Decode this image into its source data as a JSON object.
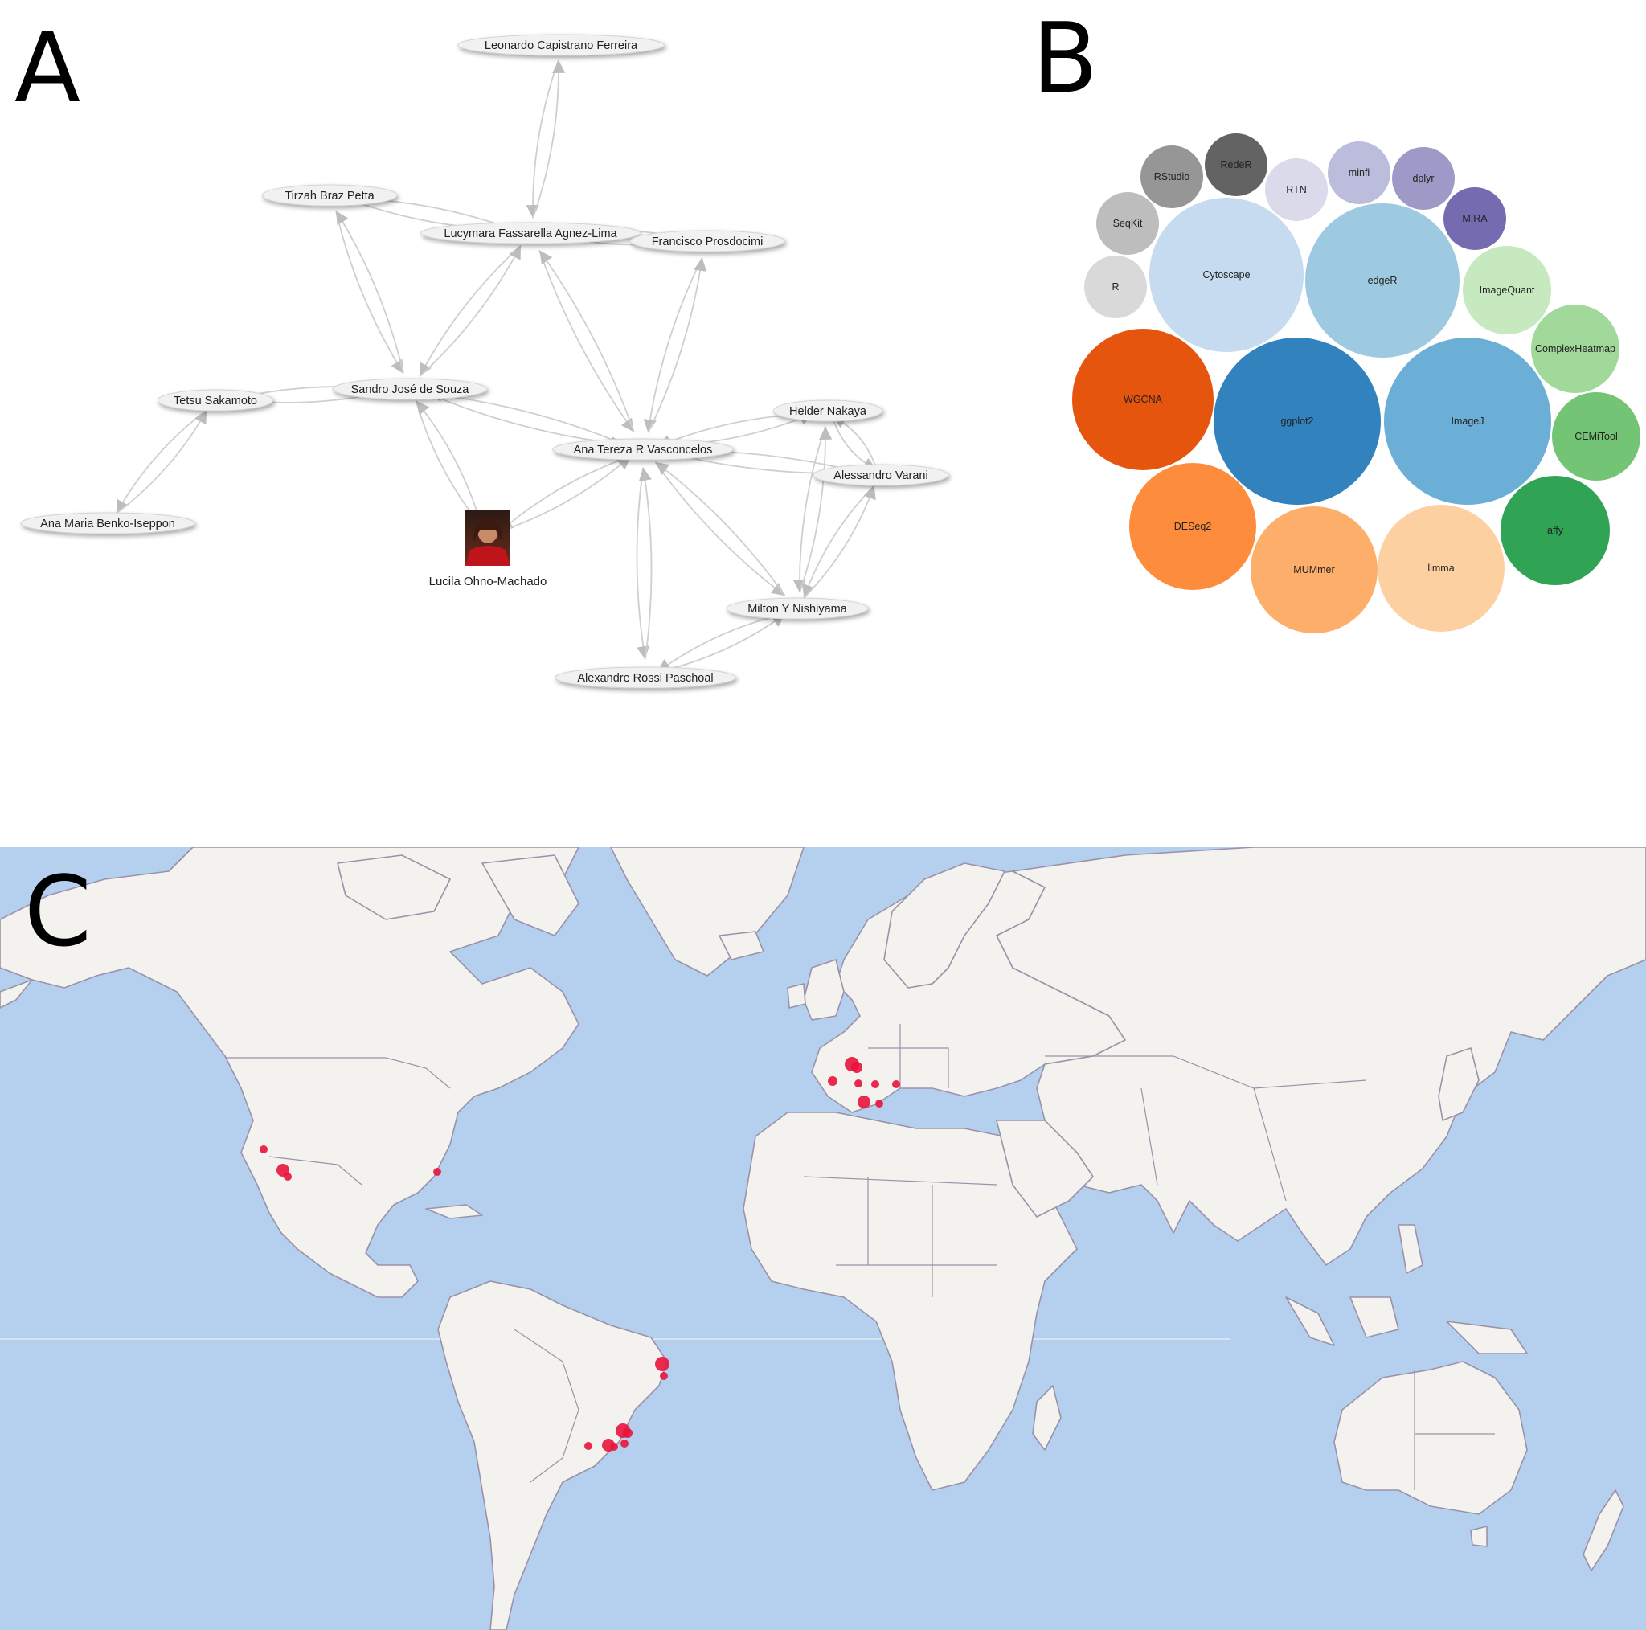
{
  "panels": {
    "a": {
      "letter": "A"
    },
    "b": {
      "letter": "B"
    },
    "c": {
      "letter": "C"
    }
  },
  "network": {
    "nodes": [
      {
        "id": "leonardo",
        "label": "Leonardo Capistrano Ferreira"
      },
      {
        "id": "tirzah",
        "label": "Tirzah Braz Petta"
      },
      {
        "id": "lucymara",
        "label": "Lucymara Fassarella Agnez-Lima"
      },
      {
        "id": "francisco",
        "label": "Francisco Prosdocimi"
      },
      {
        "id": "tetsu",
        "label": "Tetsu Sakamoto"
      },
      {
        "id": "sandro",
        "label": "Sandro José de Souza"
      },
      {
        "id": "helder",
        "label": "Helder Nakaya"
      },
      {
        "id": "ana_tereza",
        "label": "Ana Tereza R Vasconcelos"
      },
      {
        "id": "alessandro",
        "label": "Alessandro Varani"
      },
      {
        "id": "ana_maria",
        "label": "Ana Maria Benko-Iseppon"
      },
      {
        "id": "lucila",
        "label": "Lucila Ohno-Machado",
        "photo": true
      },
      {
        "id": "milton",
        "label": "Milton Y Nishiyama"
      },
      {
        "id": "alexandre",
        "label": "Alexandre Rossi Paschoal"
      }
    ],
    "edges": [
      [
        "leonardo",
        "lucymara"
      ],
      [
        "lucymara",
        "leonardo"
      ],
      [
        "tirzah",
        "lucymara"
      ],
      [
        "lucymara",
        "tirzah"
      ],
      [
        "tirzah",
        "sandro"
      ],
      [
        "sandro",
        "tirzah"
      ],
      [
        "lucymara",
        "francisco"
      ],
      [
        "francisco",
        "lucymara"
      ],
      [
        "lucymara",
        "sandro"
      ],
      [
        "sandro",
        "lucymara"
      ],
      [
        "lucymara",
        "ana_tereza"
      ],
      [
        "ana_tereza",
        "lucymara"
      ],
      [
        "francisco",
        "ana_tereza"
      ],
      [
        "ana_tereza",
        "francisco"
      ],
      [
        "tetsu",
        "sandro"
      ],
      [
        "sandro",
        "tetsu"
      ],
      [
        "tetsu",
        "ana_maria"
      ],
      [
        "ana_maria",
        "tetsu"
      ],
      [
        "sandro",
        "ana_tereza"
      ],
      [
        "ana_tereza",
        "sandro"
      ],
      [
        "sandro",
        "lucila"
      ],
      [
        "lucila",
        "sandro"
      ],
      [
        "ana_tereza",
        "lucila"
      ],
      [
        "lucila",
        "ana_tereza"
      ],
      [
        "ana_tereza",
        "helder"
      ],
      [
        "helder",
        "ana_tereza"
      ],
      [
        "ana_tereza",
        "alessandro"
      ],
      [
        "alessandro",
        "ana_tereza"
      ],
      [
        "ana_tereza",
        "milton"
      ],
      [
        "milton",
        "ana_tereza"
      ],
      [
        "ana_tereza",
        "alexandre"
      ],
      [
        "alexandre",
        "ana_tereza"
      ],
      [
        "helder",
        "alessandro"
      ],
      [
        "alessandro",
        "helder"
      ],
      [
        "helder",
        "milton"
      ],
      [
        "milton",
        "helder"
      ],
      [
        "alessandro",
        "milton"
      ],
      [
        "milton",
        "alessandro"
      ],
      [
        "milton",
        "alexandre"
      ],
      [
        "alexandre",
        "milton"
      ]
    ]
  },
  "bubbles": [
    {
      "label": "RStudio",
      "color": "#969696"
    },
    {
      "label": "RedeR",
      "color": "#636363"
    },
    {
      "label": "RTN",
      "color": "#dadaeb"
    },
    {
      "label": "minfi",
      "color": "#bcbddc"
    },
    {
      "label": "dplyr",
      "color": "#9e9ac8"
    },
    {
      "label": "SeqKit",
      "color": "#bdbdbd"
    },
    {
      "label": "MIRA",
      "color": "#756bb1"
    },
    {
      "label": "R",
      "color": "#d9d9d9"
    },
    {
      "label": "Cytoscape",
      "color": "#c6dbef"
    },
    {
      "label": "edgeR",
      "color": "#9ecae1"
    },
    {
      "label": "ImageQuant",
      "color": "#c7e9c0"
    },
    {
      "label": "ComplexHeatmap",
      "color": "#a1d99b"
    },
    {
      "label": "WGCNA",
      "color": "#e6550d"
    },
    {
      "label": "ggplot2",
      "color": "#3182bd"
    },
    {
      "label": "ImageJ",
      "color": "#6baed6"
    },
    {
      "label": "CEMiTool",
      "color": "#74c476"
    },
    {
      "label": "DESeq2",
      "color": "#fd8d3c"
    },
    {
      "label": "MUMmer",
      "color": "#fdae6b"
    },
    {
      "label": "limma",
      "color": "#fdd0a2"
    },
    {
      "label": "affy",
      "color": "#31a354"
    }
  ],
  "map": {
    "colors": {
      "ocean": "#b5cfee",
      "land": "#f4f2ef",
      "border": "#9a92a8",
      "marker": "#e8143c"
    },
    "markers": [
      "california-1",
      "california-2",
      "california-3",
      "texas",
      "belgium-1",
      "belgium-2",
      "france",
      "switzerland",
      "germany",
      "austria",
      "italy-1",
      "italy-2",
      "natal",
      "recife",
      "sao-paulo-1",
      "sao-paulo-2",
      "sao-paulo-3",
      "rio-1",
      "rio-2",
      "parana"
    ]
  }
}
